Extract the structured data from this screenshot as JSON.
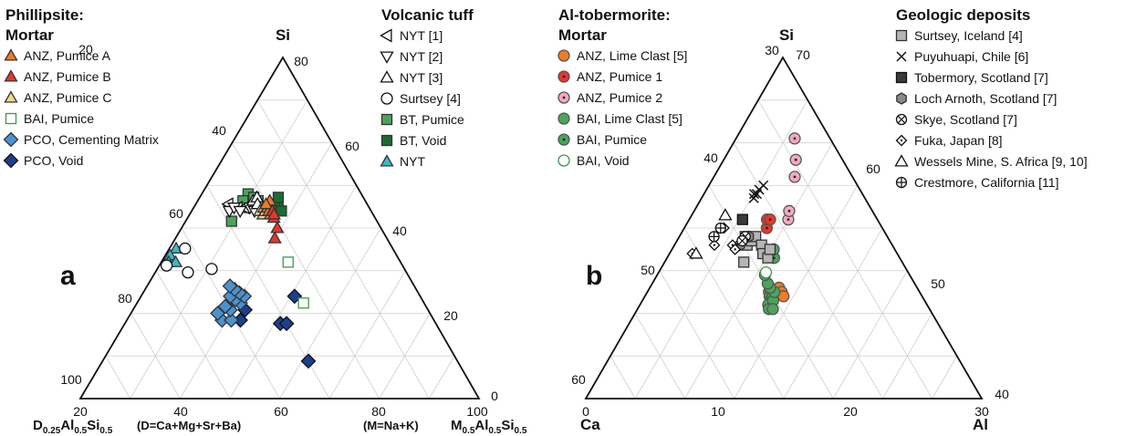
{
  "chart_data": [
    {
      "type": "scatter",
      "panel_label": "a",
      "apex_labels": {
        "top": "Si",
        "left": "D",
        "right": "M"
      },
      "left_label_parts": [
        "D",
        "0.25",
        "Al",
        "0.5",
        "Si",
        "0.5"
      ],
      "right_label_parts": [
        "M",
        "0.5",
        "Al",
        "0.5",
        "Si",
        "0.5"
      ],
      "left_note": "(D=Ca+Mg+Sr+Ba)",
      "right_note": "(M=Na+K)",
      "bottom_ticks": [
        "20",
        "40",
        "60",
        "80",
        "100"
      ],
      "left_ticks": [
        "20",
        "40",
        "60",
        "80",
        "100"
      ],
      "right_ticks": [
        "80",
        "60",
        "40",
        "20",
        "0"
      ],
      "legend_left": {
        "title": [
          "Phillipsite:",
          "Mortar"
        ],
        "entries": [
          {
            "label": "ANZ, Pumice A",
            "marker": "triangle",
            "fill": "#f07a26",
            "stroke": "#333333"
          },
          {
            "label": "ANZ, Pumice B",
            "marker": "triangle",
            "fill": "#e8362b",
            "stroke": "#333333"
          },
          {
            "label": "ANZ, Pumice C",
            "marker": "triangle",
            "fill": "#f3d58c",
            "stroke": "#333333"
          },
          {
            "label": "BAI, Pumice",
            "marker": "square",
            "fill": "#ffffff",
            "stroke": "#3a9a4a"
          },
          {
            "label": "PCO, Cementing Matrix",
            "marker": "diamond",
            "fill": "#4b92d0",
            "stroke": "#333333"
          },
          {
            "label": "PCO, Void",
            "marker": "diamond",
            "fill": "#1b3f8f",
            "stroke": "#111111"
          }
        ]
      },
      "legend_right": {
        "title": [
          "Volcanic tuff"
        ],
        "entries": [
          {
            "label": "NYT [1]",
            "marker": "tri-left",
            "fill": "#ffffff",
            "stroke": "#111111"
          },
          {
            "label": "NYT [2]",
            "marker": "tri-down",
            "fill": "#ffffff",
            "stroke": "#111111"
          },
          {
            "label": "NYT [3]",
            "marker": "triangle",
            "fill": "#ffffff",
            "stroke": "#111111"
          },
          {
            "label": "Surtsey [4]",
            "marker": "circle",
            "fill": "#ffffff",
            "stroke": "#111111"
          },
          {
            "label": "BT, Pumice",
            "marker": "square",
            "fill": "#4aa55a",
            "stroke": "#333333"
          },
          {
            "label": "BT, Void",
            "marker": "square",
            "fill": "#1c6b33",
            "stroke": "#333333"
          },
          {
            "label": "NYT",
            "marker": "triangle",
            "fill": "#3fb5c8",
            "stroke": "#333333"
          }
        ]
      },
      "points": [
        {
          "series": "PCO, Void",
          "si": 11.0,
          "m": 58.0
        },
        {
          "series": "PCO, Void",
          "si": 22.0,
          "m": 50.0
        },
        {
          "series": "PCO, Void",
          "si": 22.0,
          "m": 52.0
        },
        {
          "series": "PCO, Void",
          "si": 23.0,
          "m": 37.0
        },
        {
          "series": "PCO, Void",
          "si": 26.0,
          "m": 38.0
        },
        {
          "series": "PCO, Void",
          "si": 30.0,
          "m": 55.0
        },
        {
          "series": "PCO, Cementing Matrix",
          "si": 23.0,
          "m": 31.0
        },
        {
          "series": "PCO, Cementing Matrix",
          "si": 23.0,
          "m": 34.0
        },
        {
          "series": "PCO, Cementing Matrix",
          "si": 25.0,
          "m": 29.0
        },
        {
          "series": "PCO, Cementing Matrix",
          "si": 26.0,
          "m": 33.0
        },
        {
          "series": "PCO, Cementing Matrix",
          "si": 27.0,
          "m": 31.0
        },
        {
          "series": "PCO, Cementing Matrix",
          "si": 28.0,
          "m": 36.0
        },
        {
          "series": "PCO, Cementing Matrix",
          "si": 29.0,
          "m": 34.0
        },
        {
          "series": "PCO, Cementing Matrix",
          "si": 30.0,
          "m": 37.0
        },
        {
          "series": "PCO, Cementing Matrix",
          "si": 30.0,
          "m": 32.0
        },
        {
          "series": "PCO, Cementing Matrix",
          "si": 31.0,
          "m": 35.0
        },
        {
          "series": "PCO, Cementing Matrix",
          "si": 32.0,
          "m": 33.0
        },
        {
          "series": "PCO, Cementing Matrix",
          "si": 33.0,
          "m": 31.0
        },
        {
          "series": "BAI, Pumice",
          "si": 28.0,
          "m": 58.0
        },
        {
          "series": "BAI, Pumice",
          "si": 40.0,
          "m": 53.0
        },
        {
          "series": "NYT",
          "si": 44.0,
          "m": 3.0
        },
        {
          "series": "NYT",
          "si": 42.0,
          "m": 2.0
        },
        {
          "series": "NYT",
          "si": 40.0,
          "m": 3.0
        },
        {
          "series": "NYT",
          "si": 40.0,
          "m": 6.0
        },
        {
          "series": "Surtsey [4]",
          "si": 44.0,
          "m": 7.0
        },
        {
          "series": "Surtsey [4]",
          "si": 39.0,
          "m": 3.0
        },
        {
          "series": "Surtsey [4]",
          "si": 37.0,
          "m": 13.0
        },
        {
          "series": "Surtsey [4]",
          "si": 38.0,
          "m": 22.0
        },
        {
          "series": "BT, Pumice",
          "si": 52.0,
          "m": 24.0
        },
        {
          "series": "BT, Pumice",
          "si": 56.0,
          "m": 29.0
        },
        {
          "series": "BT, Pumice",
          "si": 60.0,
          "m": 29.0
        },
        {
          "series": "BT, Pumice",
          "si": 58.0,
          "m": 27.0
        },
        {
          "series": "BT, Pumice",
          "si": 59.0,
          "m": 33.0
        },
        {
          "series": "BT, Pumice",
          "si": 58.0,
          "m": 36.0
        },
        {
          "series": "BT, Void",
          "si": 57.0,
          "m": 48.0
        },
        {
          "series": "BT, Void",
          "si": 56.0,
          "m": 46.0
        },
        {
          "series": "BT, Void",
          "si": 55.0,
          "m": 50.0
        },
        {
          "series": "BT, Void",
          "si": 59.0,
          "m": 48.0
        },
        {
          "series": "NYT [1]",
          "si": 57.0,
          "m": 19.0
        },
        {
          "series": "NYT [1]",
          "si": 56.0,
          "m": 25.0
        },
        {
          "series": "NYT [1]",
          "si": 56.0,
          "m": 29.0
        },
        {
          "series": "NYT [1]",
          "si": 57.0,
          "m": 32.0
        },
        {
          "series": "NYT [2]",
          "si": 55.0,
          "m": 21.0
        },
        {
          "series": "NYT [2]",
          "si": 56.0,
          "m": 23.0
        },
        {
          "series": "NYT [2]",
          "si": 55.0,
          "m": 27.0
        },
        {
          "series": "NYT [2]",
          "si": 56.0,
          "m": 32.0
        },
        {
          "series": "NYT [2]",
          "si": 55.0,
          "m": 35.0
        },
        {
          "series": "NYT [3]",
          "si": 58.0,
          "m": 33.0
        },
        {
          "series": "NYT [3]",
          "si": 59.0,
          "m": 35.0
        },
        {
          "series": "NYT [3]",
          "si": 57.0,
          "m": 36.0
        },
        {
          "series": "ANZ, Pumice C",
          "si": 55.0,
          "m": 38.0
        },
        {
          "series": "ANZ, Pumice C",
          "si": 56.0,
          "m": 40.0
        },
        {
          "series": "ANZ, Pumice C",
          "si": 54.0,
          "m": 40.0
        },
        {
          "series": "ANZ, Pumice C",
          "si": 55.0,
          "m": 41.0
        },
        {
          "series": "ANZ, Pumice A",
          "si": 56.0,
          "m": 42.0
        },
        {
          "series": "ANZ, Pumice A",
          "si": 58.0,
          "m": 43.0
        },
        {
          "series": "ANZ, Pumice A",
          "si": 55.0,
          "m": 43.0
        },
        {
          "series": "ANZ, Pumice A",
          "si": 57.0,
          "m": 41.0
        },
        {
          "series": "ANZ, Pumice A",
          "si": 54.0,
          "m": 44.0
        },
        {
          "series": "ANZ, Pumice B",
          "si": 55.0,
          "m": 45.0
        },
        {
          "series": "ANZ, Pumice B",
          "si": 53.0,
          "m": 46.0
        },
        {
          "series": "ANZ, Pumice B",
          "si": 50.0,
          "m": 48.0
        },
        {
          "series": "ANZ, Pumice B",
          "si": 47.0,
          "m": 47.0
        },
        {
          "series": "ANZ, Pumice B",
          "si": 54.0,
          "m": 46.0
        }
      ]
    },
    {
      "type": "scatter",
      "panel_label": "b",
      "apex_labels": {
        "top": "Si",
        "left": "Ca",
        "right": "Al"
      },
      "bottom_ticks": [
        "0",
        "10",
        "20",
        "30"
      ],
      "left_ticks": [
        "30",
        "40",
        "50",
        "60"
      ],
      "right_ticks": [
        "70",
        "60",
        "50",
        "40"
      ],
      "legend_left": {
        "title": [
          "Al-tobermorite:",
          "Mortar"
        ],
        "entries": [
          {
            "label": "ANZ, Lime Clast [5]",
            "marker": "circle",
            "fill": "#f07a26",
            "stroke": "#555555"
          },
          {
            "label": "ANZ, Pumice 1",
            "marker": "circle-dot",
            "fill": "#e8362b",
            "stroke": "#555555"
          },
          {
            "label": "ANZ, Pumice 2",
            "marker": "circle-dot",
            "fill": "#f2a9c4",
            "stroke": "#555555"
          },
          {
            "label": "BAI, Lime Clast [5]",
            "marker": "circle",
            "fill": "#4aa55a",
            "stroke": "#555555"
          },
          {
            "label": "BAI, Pumice",
            "marker": "circle-dot",
            "fill": "#4aa55a",
            "stroke": "#555555"
          },
          {
            "label": "BAI, Void",
            "marker": "circle",
            "fill": "#ffffff",
            "stroke": "#3a9a4a"
          }
        ]
      },
      "legend_right": {
        "title": [
          "Geologic deposits"
        ],
        "entries": [
          {
            "label": "Surtsey, Iceland [4]",
            "marker": "square",
            "fill": "#b5b5b5",
            "stroke": "#333333"
          },
          {
            "label": "Puyuhuapi, Chile [6]",
            "marker": "cross",
            "fill": "#ffffff",
            "stroke": "#111111"
          },
          {
            "label": "Tobermory, Scotland [7]",
            "marker": "square",
            "fill": "#3a3a3a",
            "stroke": "#111111"
          },
          {
            "label": "Loch Arnoth, Scotland [7]",
            "marker": "hexagon",
            "fill": "#8a8a8a",
            "stroke": "#333333"
          },
          {
            "label": "Skye, Scotland [7]",
            "marker": "otimes",
            "fill": "#ffffff",
            "stroke": "#111111"
          },
          {
            "label": "Fuka, Japan [8]",
            "marker": "diamond-dot",
            "fill": "#ffffff",
            "stroke": "#111111"
          },
          {
            "label": "Wessels Mine, S. Africa [9, 10]",
            "marker": "triangle",
            "fill": "#ffffff",
            "stroke": "#111111"
          },
          {
            "label": "Crestmore, California [11]",
            "marker": "oplus",
            "fill": "#ffffff",
            "stroke": "#111111"
          }
        ]
      },
      "points": [
        {
          "series": "ANZ, Lime Clast [5]",
          "si": 43.0,
          "al": 14.5
        },
        {
          "series": "ANZ, Lime Clast [5]",
          "si": 42.5,
          "al": 14.8
        },
        {
          "series": "ANZ, Lime Clast [5]",
          "si": 42.0,
          "al": 15.0
        },
        {
          "series": "BAI, Lime Clast [5]",
          "si": 42.5,
          "al": 13.4
        },
        {
          "series": "BAI, Lime Clast [5]",
          "si": 42.0,
          "al": 13.5
        },
        {
          "series": "BAI, Lime Clast [5]",
          "si": 41.5,
          "al": 13.6
        },
        {
          "series": "BAI, Lime Clast [5]",
          "si": 41.0,
          "al": 13.7
        },
        {
          "series": "BAI, Lime Clast [5]",
          "si": 41.0,
          "al": 13.4
        },
        {
          "series": "BAI, Lime Clast [5]",
          "si": 42.0,
          "al": 13.8
        },
        {
          "series": "BAI, Lime Clast [5]",
          "si": 41.5,
          "al": 13.9
        },
        {
          "series": "BAI, Lime Clast [5]",
          "si": 40.5,
          "al": 13.5
        },
        {
          "series": "BAI, Lime Clast [5]",
          "si": 40.5,
          "al": 13.9
        },
        {
          "series": "BAI, Lime Clast [5]",
          "si": 42.5,
          "al": 14.0
        },
        {
          "series": "BAI, Lime Clast [5]",
          "si": 43.0,
          "al": 13.5
        },
        {
          "series": "BAI, Lime Clast [5]",
          "si": 43.5,
          "al": 13.2
        },
        {
          "series": "BAI, Lime Clast [5]",
          "si": 44.5,
          "al": 12.8
        },
        {
          "series": "BAI, Void",
          "si": 44.8,
          "al": 12.9
        },
        {
          "series": "BAI, Pumice",
          "si": 46.5,
          "al": 13.8
        },
        {
          "series": "BAI, Pumice",
          "si": 47.5,
          "al": 13.7
        },
        {
          "series": "ANZ, Pumice 1",
          "si": 50.0,
          "al": 12.5
        },
        {
          "series": "ANZ, Pumice 1",
          "si": 51.0,
          "al": 12.4
        },
        {
          "series": "ANZ, Pumice 1",
          "si": 51.0,
          "al": 12.9
        },
        {
          "series": "ANZ, Pumice 2",
          "si": 51.0,
          "al": 15.8
        },
        {
          "series": "ANZ, Pumice 2",
          "si": 52.0,
          "al": 16.0
        },
        {
          "series": "ANZ, Pumice 2",
          "si": 56.0,
          "al": 17.5
        },
        {
          "series": "ANZ, Pumice 2",
          "si": 58.0,
          "al": 18.2
        },
        {
          "series": "ANZ, Pumice 2",
          "si": 60.5,
          "al": 18.7
        },
        {
          "series": "Surtsey, Iceland [4]",
          "si": 49.0,
          "al": 9.5
        },
        {
          "series": "Surtsey, Iceland [4]",
          "si": 48.0,
          "al": 10.0
        },
        {
          "series": "Surtsey, Iceland [4]",
          "si": 48.5,
          "al": 10.5
        },
        {
          "series": "Surtsey, Iceland [4]",
          "si": 49.0,
          "al": 11.0
        },
        {
          "series": "Surtsey, Iceland [4]",
          "si": 48.0,
          "al": 12.0
        },
        {
          "series": "Surtsey, Iceland [4]",
          "si": 47.0,
          "al": 12.3
        },
        {
          "series": "Surtsey, Iceland [4]",
          "si": 46.5,
          "al": 13.0
        },
        {
          "series": "Surtsey, Iceland [4]",
          "si": 47.5,
          "al": 13.2
        },
        {
          "series": "Surtsey, Iceland [4]",
          "si": 46.0,
          "al": 10.0
        },
        {
          "series": "Puyuhuapi, Chile [6]",
          "si": 54.0,
          "al": 9.5
        },
        {
          "series": "Puyuhuapi, Chile [6]",
          "si": 53.5,
          "al": 9.6
        },
        {
          "series": "Puyuhuapi, Chile [6]",
          "si": 54.0,
          "al": 10.0
        },
        {
          "series": "Puyuhuapi, Chile [6]",
          "si": 54.5,
          "al": 10.3
        },
        {
          "series": "Puyuhuapi, Chile [6]",
          "si": 55.0,
          "al": 11.0
        },
        {
          "series": "Tobermory, Scotland [7]",
          "si": 51.0,
          "al": 8.5
        },
        {
          "series": "Loch Arnoth, Scotland [7]",
          "si": 48.0,
          "al": 9.0
        },
        {
          "series": "Loch Arnoth, Scotland [7]",
          "si": 49.0,
          "al": 10.0
        },
        {
          "series": "Skye, Scotland [7]",
          "si": 49.0,
          "al": 9.5
        },
        {
          "series": "Skye, Scotland [7]",
          "si": 48.5,
          "al": 9.2
        },
        {
          "series": "Fuka, Japan [8]",
          "si": 50.0,
          "al": 6.0
        },
        {
          "series": "Fuka, Japan [8]",
          "si": 48.0,
          "al": 5.5
        },
        {
          "series": "Fuka, Japan [8]",
          "si": 47.0,
          "al": 3.0
        },
        {
          "series": "Fuka, Japan [8]",
          "si": 48.0,
          "al": 8.0
        },
        {
          "series": "Fuka, Japan [8]",
          "si": 47.5,
          "al": 8.5
        },
        {
          "series": "Wessels Mine, S. Africa [9, 10]",
          "si": 51.5,
          "al": 5.5
        },
        {
          "series": "Wessels Mine, S. Africa [9, 10]",
          "si": 47.0,
          "al": 3.5
        },
        {
          "series": "Crestmore, California [11]",
          "si": 50.0,
          "al": 5.5
        },
        {
          "series": "Crestmore, California [11]",
          "si": 49.0,
          "al": 5.0
        }
      ]
    }
  ]
}
